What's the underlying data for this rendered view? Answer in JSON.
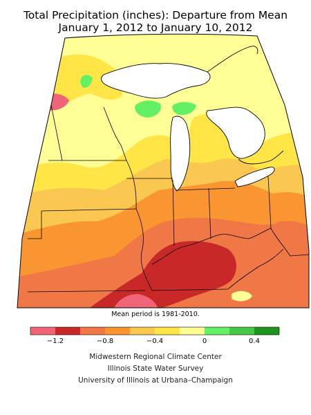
{
  "title_line_1": "Total Precipitation (inches): Departure from Mean",
  "title_line_2": "January 1, 2012 to January 10, 2012",
  "mean_note": "Mean period is 1981-2010.",
  "legend": {
    "colors": [
      "#f06478",
      "#c82828",
      "#f07846",
      "#fa9632",
      "#fac850",
      "#ffe646",
      "#ffff96",
      "#64f064",
      "#46c846",
      "#1e961e"
    ],
    "tick_labels": [
      "−1.2",
      "−0.8",
      "−0.4",
      "0",
      "0.4"
    ]
  },
  "credits": {
    "line_1": "Midwestern Regional Climate Center",
    "line_2": "Illinois State Water Survey",
    "line_3": "University of Illinois at Urbana–Champaign"
  },
  "map": {
    "region": "Midwest United States",
    "water_color": "#ffffff"
  }
}
